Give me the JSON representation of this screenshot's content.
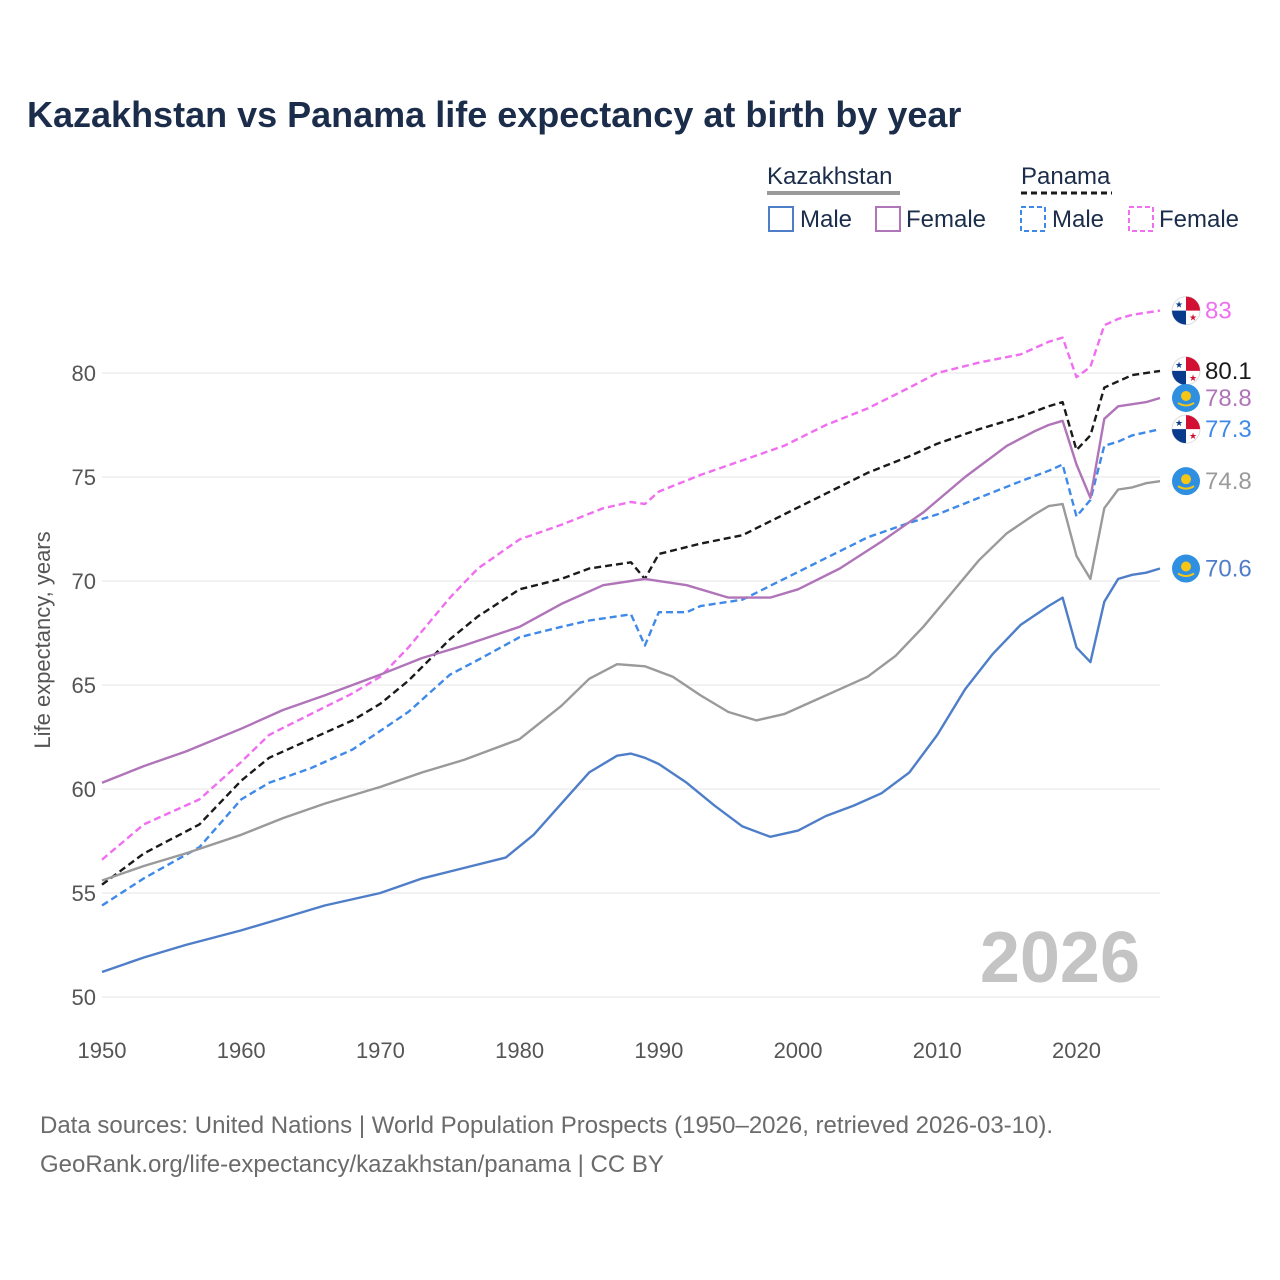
{
  "title": "Kazakhstan vs Panama life expectancy at birth by year",
  "footer": {
    "line1": "Data sources: United Nations | World Population Prospects (1950–2026, retrieved 2026-03-10).",
    "line2": "GeoRank.org/life-expectancy/kazakhstan/panama | CC BY"
  },
  "legend": {
    "groups": [
      {
        "label": "Kazakhstan",
        "items": [
          "Male",
          "Female"
        ]
      },
      {
        "label": "Panama",
        "items": [
          "Male",
          "Female"
        ]
      }
    ]
  },
  "chart_data": {
    "type": "line",
    "title": "Kazakhstan vs Panama life expectancy at birth by year",
    "xlabel": "",
    "ylabel": "Life expectancy, years",
    "xlim": [
      1950,
      2026
    ],
    "ylim": [
      50,
      84
    ],
    "xticks": [
      1950,
      1960,
      1970,
      1980,
      1990,
      2000,
      2010,
      2020
    ],
    "yticks": [
      50,
      55,
      60,
      65,
      70,
      75,
      80
    ],
    "year_watermark": "2026",
    "grid": true,
    "series": [
      {
        "name": "Panama Female",
        "country": "Panama",
        "sex": "Female",
        "color": "#f06ef0",
        "dash": true,
        "end_label": "83",
        "points": [
          [
            1950,
            56.6
          ],
          [
            1953,
            58.3
          ],
          [
            1957,
            59.5
          ],
          [
            1960,
            61.3
          ],
          [
            1962,
            62.6
          ],
          [
            1965,
            63.6
          ],
          [
            1968,
            64.6
          ],
          [
            1970,
            65.4
          ],
          [
            1972,
            66.8
          ],
          [
            1975,
            69.2
          ],
          [
            1977,
            70.6
          ],
          [
            1980,
            72.0
          ],
          [
            1983,
            72.7
          ],
          [
            1986,
            73.5
          ],
          [
            1988,
            73.8
          ],
          [
            1989,
            73.7
          ],
          [
            1990,
            74.3
          ],
          [
            1993,
            75.1
          ],
          [
            1996,
            75.8
          ],
          [
            1999,
            76.5
          ],
          [
            2002,
            77.5
          ],
          [
            2005,
            78.3
          ],
          [
            2008,
            79.3
          ],
          [
            2010,
            80.0
          ],
          [
            2013,
            80.5
          ],
          [
            2016,
            80.9
          ],
          [
            2018,
            81.5
          ],
          [
            2019,
            81.7
          ],
          [
            2020,
            79.8
          ],
          [
            2021,
            80.3
          ],
          [
            2022,
            82.3
          ],
          [
            2023,
            82.6
          ],
          [
            2024,
            82.8
          ],
          [
            2026,
            83.0
          ]
        ]
      },
      {
        "name": "Panama Total",
        "country": "Panama",
        "sex": "Total",
        "color": "#1a1a1a",
        "dash": true,
        "end_label": "80.1",
        "points": [
          [
            1950,
            55.4
          ],
          [
            1953,
            56.9
          ],
          [
            1957,
            58.3
          ],
          [
            1960,
            60.4
          ],
          [
            1962,
            61.5
          ],
          [
            1965,
            62.4
          ],
          [
            1968,
            63.3
          ],
          [
            1970,
            64.1
          ],
          [
            1972,
            65.2
          ],
          [
            1975,
            67.2
          ],
          [
            1977,
            68.3
          ],
          [
            1980,
            69.6
          ],
          [
            1983,
            70.1
          ],
          [
            1985,
            70.6
          ],
          [
            1988,
            70.9
          ],
          [
            1989,
            70.1
          ],
          [
            1990,
            71.3
          ],
          [
            1993,
            71.8
          ],
          [
            1996,
            72.2
          ],
          [
            1999,
            73.2
          ],
          [
            2002,
            74.2
          ],
          [
            2005,
            75.2
          ],
          [
            2008,
            76.0
          ],
          [
            2010,
            76.6
          ],
          [
            2013,
            77.3
          ],
          [
            2016,
            77.9
          ],
          [
            2018,
            78.4
          ],
          [
            2019,
            78.6
          ],
          [
            2020,
            76.3
          ],
          [
            2021,
            77.0
          ],
          [
            2022,
            79.3
          ],
          [
            2023,
            79.6
          ],
          [
            2024,
            79.9
          ],
          [
            2026,
            80.1
          ]
        ]
      },
      {
        "name": "Panama Male",
        "country": "Panama",
        "sex": "Male",
        "color": "#3f8ae8",
        "dash": true,
        "end_label": "77.3",
        "points": [
          [
            1950,
            54.4
          ],
          [
            1953,
            55.7
          ],
          [
            1957,
            57.2
          ],
          [
            1960,
            59.5
          ],
          [
            1962,
            60.3
          ],
          [
            1965,
            61.0
          ],
          [
            1968,
            61.9
          ],
          [
            1970,
            62.8
          ],
          [
            1972,
            63.7
          ],
          [
            1975,
            65.5
          ],
          [
            1977,
            66.2
          ],
          [
            1980,
            67.3
          ],
          [
            1983,
            67.8
          ],
          [
            1985,
            68.1
          ],
          [
            1988,
            68.4
          ],
          [
            1989,
            66.9
          ],
          [
            1990,
            68.5
          ],
          [
            1992,
            68.5
          ],
          [
            1993,
            68.8
          ],
          [
            1996,
            69.1
          ],
          [
            1999,
            70.1
          ],
          [
            2002,
            71.1
          ],
          [
            2005,
            72.1
          ],
          [
            2008,
            72.8
          ],
          [
            2010,
            73.2
          ],
          [
            2013,
            74.0
          ],
          [
            2016,
            74.8
          ],
          [
            2018,
            75.3
          ],
          [
            2019,
            75.6
          ],
          [
            2020,
            73.1
          ],
          [
            2021,
            73.9
          ],
          [
            2022,
            76.5
          ],
          [
            2023,
            76.7
          ],
          [
            2024,
            77.0
          ],
          [
            2026,
            77.3
          ]
        ]
      },
      {
        "name": "Kazakhstan Female",
        "country": "Kazakhstan",
        "sex": "Female",
        "color": "#b074b8",
        "dash": false,
        "end_label": "78.8",
        "points": [
          [
            1950,
            60.3
          ],
          [
            1953,
            61.1
          ],
          [
            1956,
            61.8
          ],
          [
            1960,
            62.9
          ],
          [
            1963,
            63.8
          ],
          [
            1966,
            64.5
          ],
          [
            1970,
            65.5
          ],
          [
            1973,
            66.3
          ],
          [
            1976,
            66.9
          ],
          [
            1980,
            67.8
          ],
          [
            1983,
            68.9
          ],
          [
            1986,
            69.8
          ],
          [
            1989,
            70.1
          ],
          [
            1992,
            69.8
          ],
          [
            1995,
            69.2
          ],
          [
            1998,
            69.2
          ],
          [
            2000,
            69.6
          ],
          [
            2003,
            70.6
          ],
          [
            2006,
            71.9
          ],
          [
            2009,
            73.3
          ],
          [
            2012,
            75.0
          ],
          [
            2015,
            76.5
          ],
          [
            2017,
            77.2
          ],
          [
            2018,
            77.5
          ],
          [
            2019,
            77.7
          ],
          [
            2020,
            75.6
          ],
          [
            2021,
            74.0
          ],
          [
            2022,
            77.8
          ],
          [
            2023,
            78.4
          ],
          [
            2024,
            78.5
          ],
          [
            2025,
            78.6
          ],
          [
            2026,
            78.8
          ]
        ]
      },
      {
        "name": "Kazakhstan Total",
        "country": "Kazakhstan",
        "sex": "Total",
        "color": "#9a9a9a",
        "dash": false,
        "end_label": "74.8",
        "points": [
          [
            1950,
            55.6
          ],
          [
            1953,
            56.3
          ],
          [
            1956,
            56.9
          ],
          [
            1960,
            57.8
          ],
          [
            1963,
            58.6
          ],
          [
            1966,
            59.3
          ],
          [
            1970,
            60.1
          ],
          [
            1973,
            60.8
          ],
          [
            1976,
            61.4
          ],
          [
            1980,
            62.4
          ],
          [
            1983,
            64.0
          ],
          [
            1985,
            65.3
          ],
          [
            1987,
            66.0
          ],
          [
            1989,
            65.9
          ],
          [
            1991,
            65.4
          ],
          [
            1993,
            64.5
          ],
          [
            1995,
            63.7
          ],
          [
            1997,
            63.3
          ],
          [
            1999,
            63.6
          ],
          [
            2001,
            64.2
          ],
          [
            2003,
            64.8
          ],
          [
            2005,
            65.4
          ],
          [
            2007,
            66.4
          ],
          [
            2009,
            67.8
          ],
          [
            2011,
            69.4
          ],
          [
            2013,
            71.0
          ],
          [
            2015,
            72.3
          ],
          [
            2017,
            73.2
          ],
          [
            2018,
            73.6
          ],
          [
            2019,
            73.7
          ],
          [
            2020,
            71.2
          ],
          [
            2021,
            70.1
          ],
          [
            2022,
            73.5
          ],
          [
            2023,
            74.4
          ],
          [
            2024,
            74.5
          ],
          [
            2025,
            74.7
          ],
          [
            2026,
            74.8
          ]
        ]
      },
      {
        "name": "Kazakhstan Male",
        "country": "Kazakhstan",
        "sex": "Male",
        "color": "#4f7ec9",
        "dash": false,
        "end_label": "70.6",
        "points": [
          [
            1950,
            51.2
          ],
          [
            1953,
            51.9
          ],
          [
            1956,
            52.5
          ],
          [
            1960,
            53.2
          ],
          [
            1963,
            53.8
          ],
          [
            1966,
            54.4
          ],
          [
            1970,
            55.0
          ],
          [
            1973,
            55.7
          ],
          [
            1976,
            56.2
          ],
          [
            1979,
            56.7
          ],
          [
            1981,
            57.8
          ],
          [
            1983,
            59.3
          ],
          [
            1985,
            60.8
          ],
          [
            1987,
            61.6
          ],
          [
            1988,
            61.7
          ],
          [
            1989,
            61.5
          ],
          [
            1990,
            61.2
          ],
          [
            1992,
            60.3
          ],
          [
            1994,
            59.2
          ],
          [
            1996,
            58.2
          ],
          [
            1998,
            57.7
          ],
          [
            2000,
            58.0
          ],
          [
            2002,
            58.7
          ],
          [
            2004,
            59.2
          ],
          [
            2006,
            59.8
          ],
          [
            2008,
            60.8
          ],
          [
            2010,
            62.6
          ],
          [
            2012,
            64.8
          ],
          [
            2014,
            66.5
          ],
          [
            2016,
            67.9
          ],
          [
            2018,
            68.8
          ],
          [
            2019,
            69.2
          ],
          [
            2020,
            66.8
          ],
          [
            2021,
            66.1
          ],
          [
            2022,
            69.0
          ],
          [
            2023,
            70.1
          ],
          [
            2024,
            70.3
          ],
          [
            2025,
            70.4
          ],
          [
            2026,
            70.6
          ]
        ]
      }
    ]
  }
}
